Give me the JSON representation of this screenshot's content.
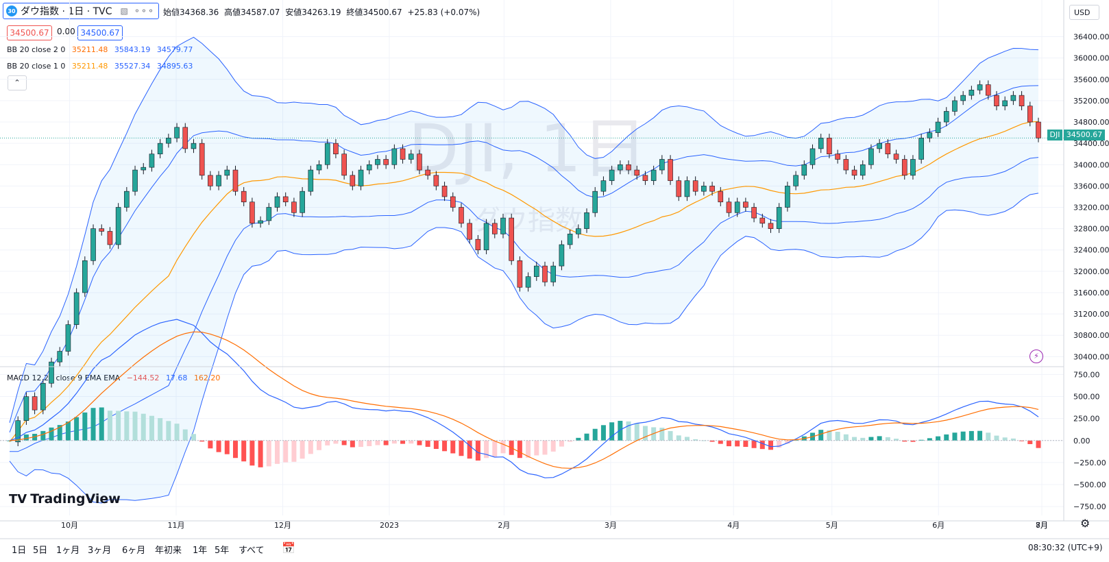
{
  "symbol": {
    "badge": "30",
    "title": "ダウ指数 · 1日 · TVC"
  },
  "ohlc": {
    "open_label": "始値",
    "open": "34368.36",
    "high_label": "高値",
    "high": "34587.07",
    "low_label": "安値",
    "low": "34263.19",
    "close_label": "終値",
    "close": "34500.67",
    "change": "+25.83 (+0.07%)"
  },
  "quote": {
    "bid": "34500.67",
    "spread": "0.00",
    "ask": "34500.67"
  },
  "indicators": {
    "bb2": {
      "label": "BB 20 close 2 0",
      "basis": "35211.48",
      "upper": "35843.19",
      "lower": "34579.77"
    },
    "bb1": {
      "label": "BB 20 close 1 0",
      "basis": "35211.48",
      "upper": "35527.34",
      "lower": "34895.63"
    },
    "macd": {
      "label": "MACD 12 26 close 9 EMA EMA",
      "hist": "−144.52",
      "macd": "17.68",
      "signal": "162.20"
    }
  },
  "watermark": {
    "main": "DJI, 1日",
    "sub": "ダウ指数"
  },
  "currency": "USD",
  "last_price": {
    "symbol": "DJI",
    "price": "34500.67"
  },
  "brand": "TradingView",
  "timeframes": [
    "1日",
    "5日",
    "1ヶ月",
    "3ヶ月",
    "6ヶ月",
    "年初来",
    "1年",
    "5年",
    "すべて"
  ],
  "clock": "08:30:32 (UTC+9)",
  "colors": {
    "up": "#26a69a",
    "down": "#ef5350",
    "band": "#2962ff",
    "basis": "#ff9800",
    "macd_line": "#2962ff",
    "signal_line": "#ff6d00"
  },
  "chart_data": [
    {
      "type": "candlestick",
      "title": "ダウ指数 · 1日",
      "x_ticks": [
        "10月",
        "11月",
        "12月",
        "2023",
        "2月",
        "3月",
        "4月",
        "5月",
        "6月",
        "7月",
        "8月"
      ],
      "y_ticks": [
        "36400.00",
        "36000.00",
        "35600.00",
        "35200.00",
        "34800.00",
        "34400.00",
        "34000.00",
        "33600.00",
        "33200.00",
        "32800.00",
        "32400.00",
        "32000.00",
        "31600.00",
        "31200.00",
        "30800.00",
        "30400.00"
      ],
      "ylim": [
        30250,
        36600
      ],
      "close_series": [
        28800,
        29200,
        29650,
        29400,
        29900,
        30300,
        30500,
        31000,
        31600,
        32200,
        32800,
        32750,
        32500,
        33200,
        33500,
        33900,
        33950,
        34200,
        34400,
        34500,
        34700,
        34300,
        34400,
        33800,
        33600,
        33800,
        33900,
        33500,
        33300,
        32900,
        32950,
        33200,
        33400,
        33300,
        33100,
        33500,
        33900,
        34000,
        34400,
        34200,
        33800,
        33600,
        33900,
        34000,
        34100,
        34000,
        34300,
        34100,
        34200,
        33900,
        33800,
        33600,
        33400,
        33200,
        32900,
        32600,
        32400,
        32900,
        32700,
        33000,
        32200,
        31700,
        31900,
        32100,
        31800,
        32100,
        32500,
        32700,
        32800,
        33100,
        33500,
        33700,
        33900,
        34000,
        33900,
        33800,
        33700,
        33900,
        34100,
        33700,
        33400,
        33700,
        33500,
        33600,
        33500,
        33300,
        33100,
        33300,
        33200,
        33000,
        32900,
        32800,
        33200,
        33600,
        33800,
        34000,
        34300,
        34500,
        34200,
        34100,
        33900,
        33800,
        34000,
        34300,
        34400,
        34200,
        34100,
        33800,
        34100,
        34500,
        34600,
        34800,
        35000,
        35200,
        35300,
        35400,
        35500,
        35300,
        35100,
        35200,
        35300,
        35100,
        34800,
        34500
      ],
      "bb2_series": {
        "upper_end": 35843.19,
        "basis_end": 35211.48,
        "lower_end": 34579.77
      },
      "bb1_series": {
        "upper_end": 35527.34,
        "basis_end": 35211.48,
        "lower_end": 34895.63
      },
      "last": 34500.67
    },
    {
      "type": "bar+line",
      "title": "MACD 12 26 close 9 EMA EMA",
      "y_ticks": [
        "750.00",
        "500.00",
        "250.00",
        "0.00",
        "−250.00",
        "−500.00",
        "−750.00"
      ],
      "ylim": [
        -850,
        800
      ],
      "last": {
        "hist": -144.52,
        "macd": 17.68,
        "signal": 162.2
      }
    }
  ]
}
